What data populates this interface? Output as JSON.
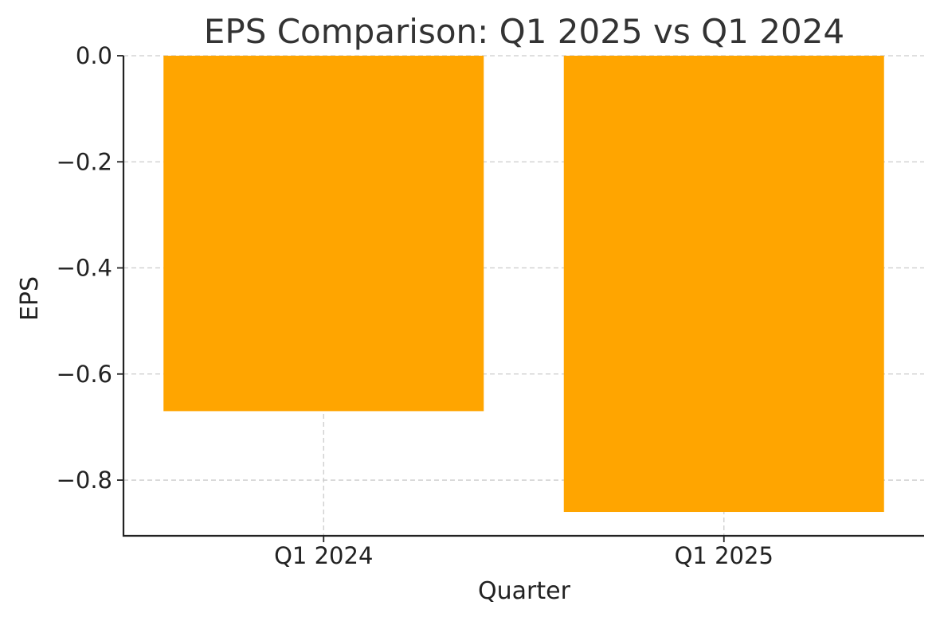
{
  "chart_data": {
    "type": "bar",
    "title": "EPS Comparison: Q1 2025 vs Q1 2024",
    "xlabel": "Quarter",
    "ylabel": "EPS",
    "categories": [
      "Q1 2024",
      "Q1 2025"
    ],
    "values": [
      -0.67,
      -0.86
    ],
    "ylim": [
      -0.905,
      0.0
    ],
    "yticks": [
      0.0,
      -0.2,
      -0.4,
      -0.6,
      -0.8
    ],
    "ytick_labels": [
      "0.0",
      "−0.2",
      "−0.4",
      "−0.6",
      "−0.8"
    ],
    "grid": true,
    "legend": "none",
    "colors": {
      "bar": "#FFA500",
      "grid": "#cccccc",
      "axis": "#222222",
      "title": "#333333"
    }
  }
}
